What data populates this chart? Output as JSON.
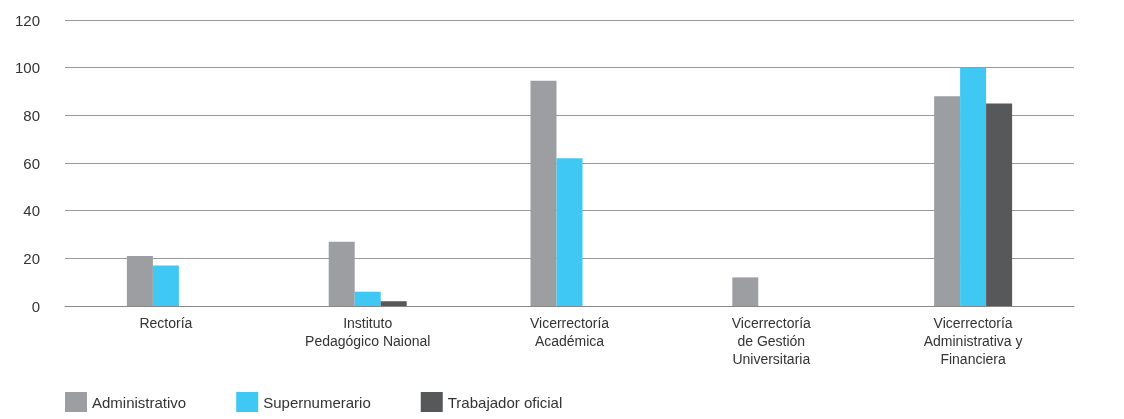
{
  "chart_data": {
    "type": "bar",
    "categories": [
      "Rectoría",
      "Instituto\nPedagógico Naional",
      "Vicerrectoría\nAcadémica",
      "Vicerrectoría\nde Gestión\nUniversitaria",
      "Vicerrectoría\nAdministrativa y\nFinanciera"
    ],
    "series": [
      {
        "name": "Administrativo",
        "color": "#9d9ea2",
        "values": [
          21,
          27,
          94.5,
          12,
          88
        ]
      },
      {
        "name": "Supernumerario",
        "color": "#40c8f4",
        "values": [
          17,
          6,
          62,
          null,
          100
        ]
      },
      {
        "name": "Trabajador oficial",
        "color": "#57585a",
        "values": [
          null,
          2,
          null,
          null,
          85
        ]
      }
    ],
    "ylim": [
      0,
      120
    ],
    "yticks": [
      0,
      20,
      40,
      60,
      80,
      100,
      120
    ],
    "grid": "y",
    "legend": "bottom left"
  }
}
